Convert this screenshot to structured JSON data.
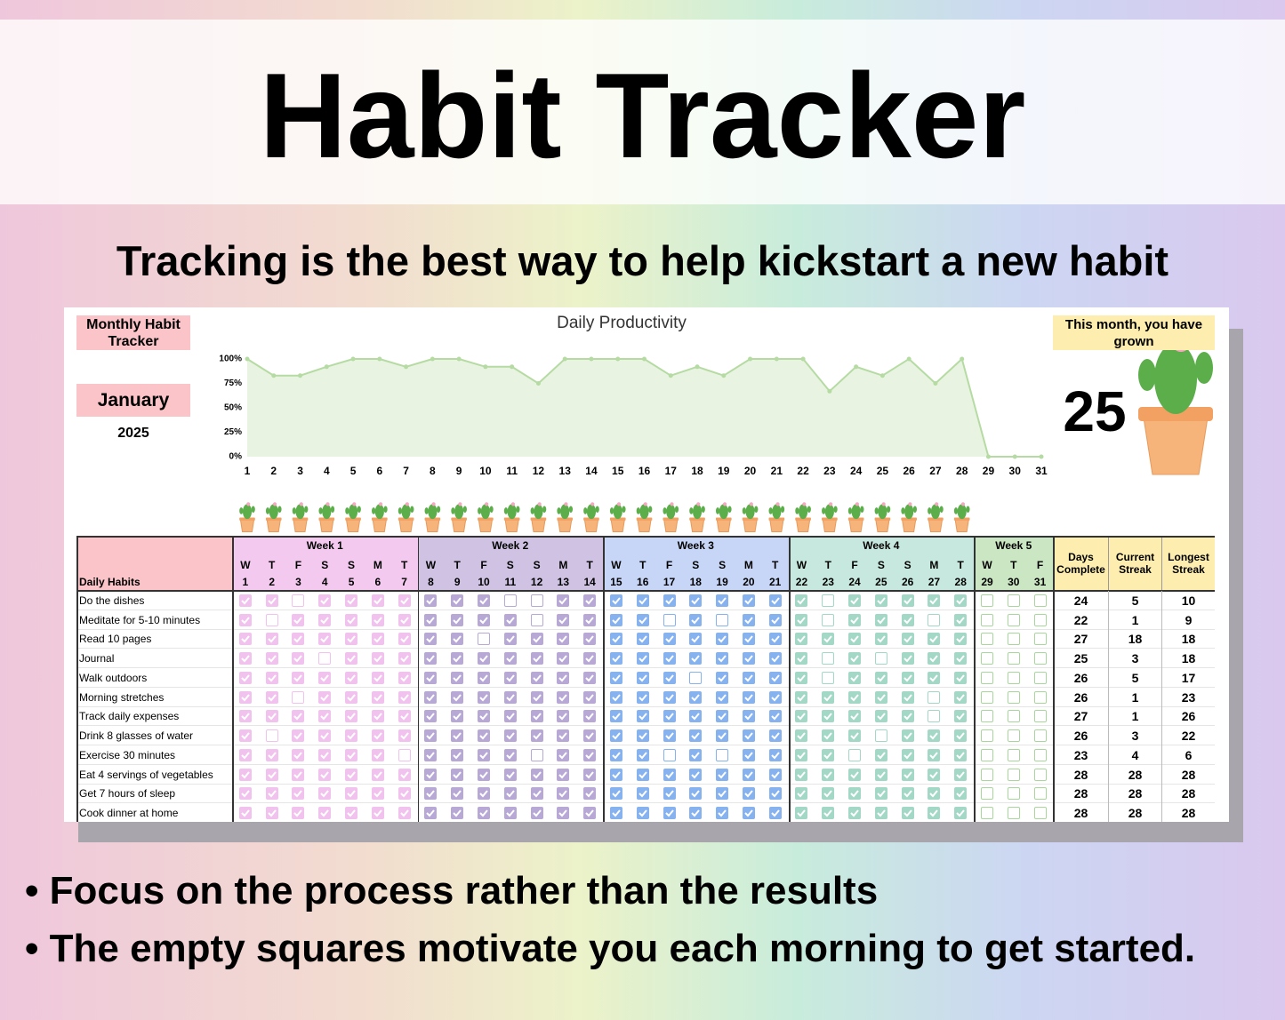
{
  "header": {
    "title": "Habit Tracker",
    "subtitle": "Tracking is the best way to help kickstart a new habit"
  },
  "sheet": {
    "label": "Monthly Habit Tracker",
    "month": "January",
    "year": 2025,
    "growth_label": "This month, you have grown",
    "growth_value": 25
  },
  "chart_data": {
    "type": "line",
    "title": "Daily Productivity",
    "x": [
      1,
      2,
      3,
      4,
      5,
      6,
      7,
      8,
      9,
      10,
      11,
      12,
      13,
      14,
      15,
      16,
      17,
      18,
      19,
      20,
      21,
      22,
      23,
      24,
      25,
      26,
      27,
      28,
      29,
      30,
      31
    ],
    "values": [
      100,
      83,
      83,
      92,
      100,
      100,
      92,
      100,
      100,
      92,
      92,
      75,
      100,
      100,
      100,
      100,
      83,
      92,
      83,
      100,
      100,
      100,
      67,
      92,
      83,
      100,
      75,
      100,
      0,
      0,
      0
    ],
    "color": "#b5dba3",
    "ylim": [
      0,
      100
    ],
    "yticks": [
      {
        "value": 0,
        "label": "0%"
      },
      {
        "value": 25,
        "label": "25%"
      },
      {
        "value": 50,
        "label": "50%"
      },
      {
        "value": 75,
        "label": "75%"
      },
      {
        "value": 100,
        "label": "100%"
      }
    ]
  },
  "table": {
    "habits_header": "Daily Habits",
    "weeks": [
      "Week 1",
      "Week 2",
      "Week 3",
      "Week 4",
      "Week 5"
    ],
    "day_letters": [
      "W",
      "T",
      "F",
      "S",
      "S",
      "M",
      "T",
      "W",
      "T",
      "F",
      "S",
      "S",
      "M",
      "T",
      "W",
      "T",
      "F",
      "S",
      "S",
      "M",
      "T",
      "W",
      "T",
      "F",
      "S",
      "S",
      "M",
      "T",
      "W",
      "T",
      "F"
    ],
    "days": [
      1,
      2,
      3,
      4,
      5,
      6,
      7,
      8,
      9,
      10,
      11,
      12,
      13,
      14,
      15,
      16,
      17,
      18,
      19,
      20,
      21,
      22,
      23,
      24,
      25,
      26,
      27,
      28,
      29,
      30,
      31
    ],
    "stat_headers": [
      "Days Complete",
      "Current Streak",
      "Longest Streak"
    ],
    "habits": [
      {
        "name": "Do the dishes",
        "checks": [
          1,
          1,
          0,
          1,
          1,
          1,
          1,
          1,
          1,
          1,
          0,
          0,
          1,
          1,
          1,
          1,
          1,
          1,
          1,
          1,
          1,
          1,
          0,
          1,
          1,
          1,
          1,
          1,
          0,
          0,
          0
        ],
        "days_complete": 24,
        "current_streak": 5,
        "longest_streak": 10
      },
      {
        "name": "Meditate for 5-10 minutes",
        "checks": [
          1,
          0,
          1,
          1,
          1,
          1,
          1,
          1,
          1,
          1,
          1,
          0,
          1,
          1,
          1,
          1,
          0,
          1,
          0,
          1,
          1,
          1,
          0,
          1,
          1,
          1,
          0,
          1,
          0,
          0,
          0
        ],
        "days_complete": 22,
        "current_streak": 1,
        "longest_streak": 9
      },
      {
        "name": "Read 10 pages",
        "checks": [
          1,
          1,
          1,
          1,
          1,
          1,
          1,
          1,
          1,
          0,
          1,
          1,
          1,
          1,
          1,
          1,
          1,
          1,
          1,
          1,
          1,
          1,
          1,
          1,
          1,
          1,
          1,
          1,
          0,
          0,
          0
        ],
        "days_complete": 27,
        "current_streak": 18,
        "longest_streak": 18
      },
      {
        "name": "Journal",
        "checks": [
          1,
          1,
          1,
          0,
          1,
          1,
          1,
          1,
          1,
          1,
          1,
          1,
          1,
          1,
          1,
          1,
          1,
          1,
          1,
          1,
          1,
          1,
          0,
          1,
          0,
          1,
          1,
          1,
          0,
          0,
          0
        ],
        "days_complete": 25,
        "current_streak": 3,
        "longest_streak": 18
      },
      {
        "name": "Walk outdoors",
        "checks": [
          1,
          1,
          1,
          1,
          1,
          1,
          1,
          1,
          1,
          1,
          1,
          1,
          1,
          1,
          1,
          1,
          1,
          0,
          1,
          1,
          1,
          1,
          0,
          1,
          1,
          1,
          1,
          1,
          0,
          0,
          0
        ],
        "days_complete": 26,
        "current_streak": 5,
        "longest_streak": 17
      },
      {
        "name": "Morning stretches",
        "checks": [
          1,
          1,
          0,
          1,
          1,
          1,
          1,
          1,
          1,
          1,
          1,
          1,
          1,
          1,
          1,
          1,
          1,
          1,
          1,
          1,
          1,
          1,
          1,
          1,
          1,
          1,
          0,
          1,
          0,
          0,
          0
        ],
        "days_complete": 26,
        "current_streak": 1,
        "longest_streak": 23
      },
      {
        "name": "Track daily expenses",
        "checks": [
          1,
          1,
          1,
          1,
          1,
          1,
          1,
          1,
          1,
          1,
          1,
          1,
          1,
          1,
          1,
          1,
          1,
          1,
          1,
          1,
          1,
          1,
          1,
          1,
          1,
          1,
          0,
          1,
          0,
          0,
          0
        ],
        "days_complete": 27,
        "current_streak": 1,
        "longest_streak": 26
      },
      {
        "name": "Drink 8 glasses of water",
        "checks": [
          1,
          0,
          1,
          1,
          1,
          1,
          1,
          1,
          1,
          1,
          1,
          1,
          1,
          1,
          1,
          1,
          1,
          1,
          1,
          1,
          1,
          1,
          1,
          1,
          0,
          1,
          1,
          1,
          0,
          0,
          0
        ],
        "days_complete": 26,
        "current_streak": 3,
        "longest_streak": 22
      },
      {
        "name": "Exercise 30 minutes",
        "checks": [
          1,
          1,
          1,
          1,
          1,
          1,
          0,
          1,
          1,
          1,
          1,
          0,
          1,
          1,
          1,
          1,
          0,
          1,
          0,
          1,
          1,
          1,
          1,
          0,
          1,
          1,
          1,
          1,
          0,
          0,
          0
        ],
        "days_complete": 23,
        "current_streak": 4,
        "longest_streak": 6
      },
      {
        "name": "Eat 4 servings of vegetables",
        "checks": [
          1,
          1,
          1,
          1,
          1,
          1,
          1,
          1,
          1,
          1,
          1,
          1,
          1,
          1,
          1,
          1,
          1,
          1,
          1,
          1,
          1,
          1,
          1,
          1,
          1,
          1,
          1,
          1,
          0,
          0,
          0
        ],
        "days_complete": 28,
        "current_streak": 28,
        "longest_streak": 28
      },
      {
        "name": "Get 7 hours of sleep",
        "checks": [
          1,
          1,
          1,
          1,
          1,
          1,
          1,
          1,
          1,
          1,
          1,
          1,
          1,
          1,
          1,
          1,
          1,
          1,
          1,
          1,
          1,
          1,
          1,
          1,
          1,
          1,
          1,
          1,
          0,
          0,
          0
        ],
        "days_complete": 28,
        "current_streak": 28,
        "longest_streak": 28
      },
      {
        "name": "Cook dinner at home",
        "checks": [
          1,
          1,
          1,
          1,
          1,
          1,
          1,
          1,
          1,
          1,
          1,
          1,
          1,
          1,
          1,
          1,
          1,
          1,
          1,
          1,
          1,
          1,
          1,
          1,
          1,
          1,
          1,
          1,
          0,
          0,
          0
        ],
        "days_complete": 28,
        "current_streak": 28,
        "longest_streak": 28
      }
    ]
  },
  "bullets": [
    "Focus on the process rather than the results",
    "The empty squares motivate you each morning to get started."
  ]
}
